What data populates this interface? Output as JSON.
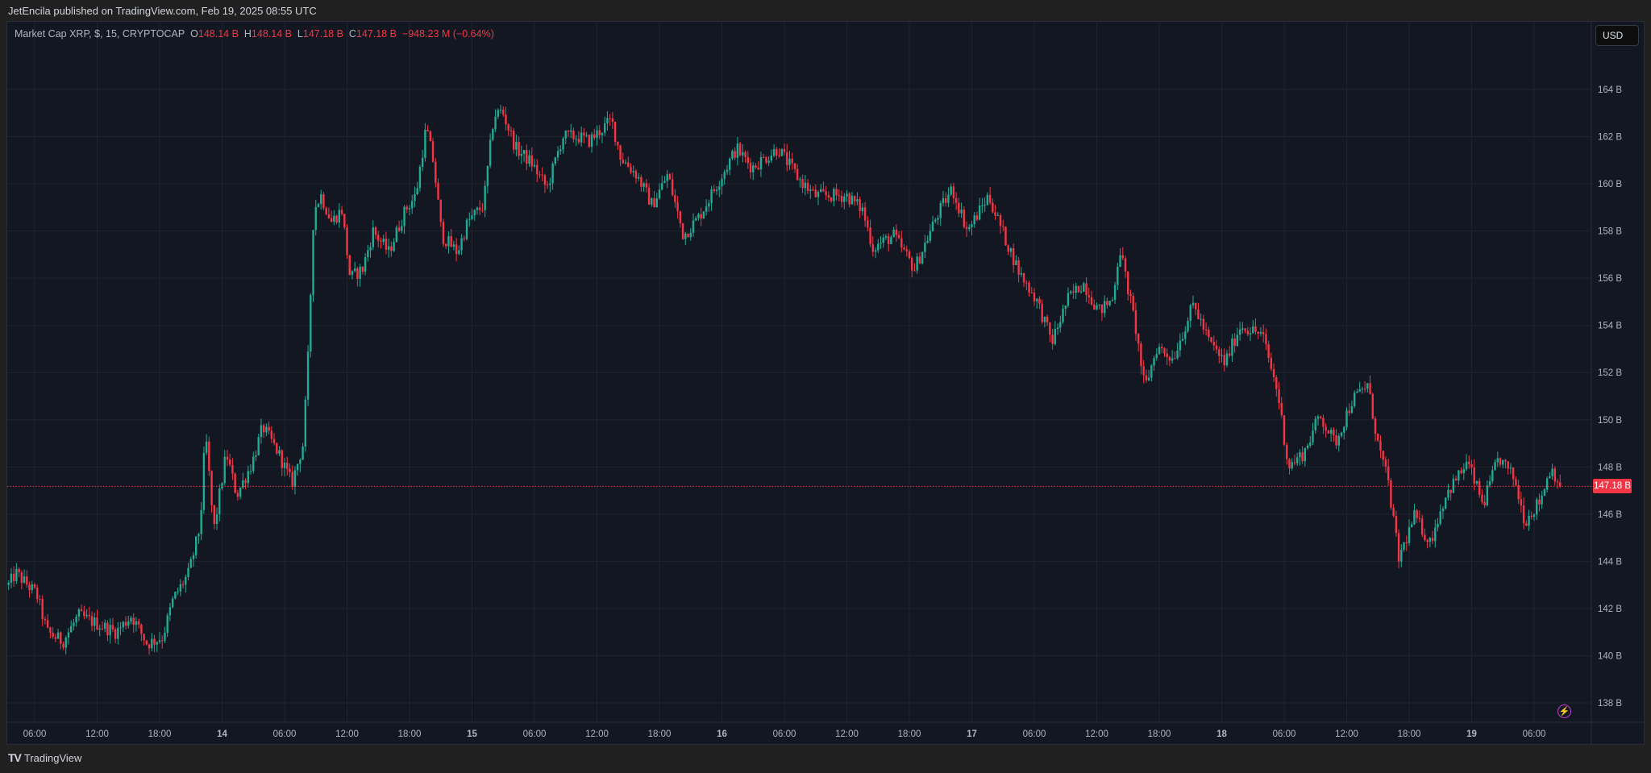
{
  "header": {
    "published": "JetEncila published on TradingView.com, Feb 19, 2025 08:55 UTC"
  },
  "legend": {
    "symbol": "Market Cap XRP, $, 15, CRYPTOCAP",
    "o_label": "O",
    "o": "148.14 B",
    "h_label": "H",
    "h": "148.14 B",
    "l_label": "L",
    "l": "147.18 B",
    "c_label": "C",
    "c": "147.18 B",
    "change": "−948.23 M (−0.64%)"
  },
  "currency_button": "USD",
  "last_price_label": "147.18 B",
  "footer": {
    "logo": "TV",
    "brand": "TradingView"
  },
  "colors": {
    "up": "#22ab94",
    "down": "#f23645",
    "grid": "#1f2330",
    "bg": "#131722"
  },
  "chart_data": {
    "type": "candlestick",
    "interval": "15m",
    "yunit": "B USD",
    "ylim": [
      137.3,
      165.2
    ],
    "yticks": [
      138,
      140,
      142,
      144,
      146,
      148,
      150,
      152,
      154,
      156,
      158,
      160,
      162,
      164
    ],
    "ytick_labels": [
      "138 B",
      "140 B",
      "142 B",
      "144 B",
      "146 B",
      "148 B",
      "150 B",
      "152 B",
      "154 B",
      "156 B",
      "158 B",
      "160 B",
      "162 B",
      "164 B"
    ],
    "xtick_labels": [
      "06:00",
      "12:00",
      "18:00",
      "14",
      "06:00",
      "12:00",
      "18:00",
      "15",
      "06:00",
      "12:00",
      "18:00",
      "16",
      "06:00",
      "12:00",
      "18:00",
      "17",
      "06:00",
      "12:00",
      "18:00",
      "18",
      "06:00",
      "12:00",
      "18:00",
      "19",
      "06:00"
    ],
    "xtick_hours_step": 6,
    "last_price": 147.18,
    "path_hours_since_feb13_0600": [
      -2.5,
      -1.8,
      0.2,
      1.2,
      2.7,
      4.2,
      6.3,
      7.8,
      9.3,
      10.8,
      12.3,
      13.3,
      14.8,
      15.9,
      16.4,
      17.2,
      18.4,
      19.4,
      20.9,
      21.9,
      23.4,
      24.7,
      25.8,
      26.3,
      26.8,
      27.5,
      28.5,
      29.5,
      30.3,
      31.5,
      32.5,
      34,
      35.6,
      36.6,
      37.6,
      38.3,
      39.1,
      40.6,
      41.6,
      43.1,
      44.1,
      44.9,
      46.2,
      47.7,
      49.2,
      50.7,
      52.2,
      53.2,
      55.4,
      56.3,
      57.8,
      59.3,
      60.8,
      62.3,
      63.8,
      65.3,
      67.4,
      68.9,
      71.4,
      73.4,
      74.9,
      76.5,
      78,
      79.5,
      80.5,
      82.5,
      84.5,
      86.6,
      88.1,
      89.6,
      91.6,
      93.1,
      94.6,
      96.2,
      97.7,
      99.2,
      100.7,
      102.2,
      103.5,
      104.2,
      105.7,
      106.6,
      107.8,
      109.3,
      111.3,
      112.8,
      114.3,
      115.8,
      117.9,
      119.4,
      120.4,
      121.9,
      123.4,
      124.9,
      126.5,
      128,
      129,
      130,
      131,
      132.5,
      134,
      135.5,
      137.6,
      139.1,
      140.6,
      142.1,
      143.1,
      144.6,
      145.6,
      146.6
    ],
    "path_price": [
      143.0,
      143.5,
      142.6,
      141,
      140.6,
      141.7,
      141.3,
      141,
      141.7,
      140.5,
      140.8,
      142.4,
      143.5,
      145.5,
      149.5,
      145.3,
      148.6,
      146.8,
      148.2,
      149.7,
      148.6,
      147.3,
      149,
      153,
      158.9,
      159.5,
      158.4,
      158.9,
      156,
      156.4,
      158,
      157.1,
      158.9,
      159.5,
      162.4,
      160.9,
      157.8,
      157.1,
      158.4,
      159.1,
      162.9,
      163.1,
      161.5,
      160.9,
      159.8,
      162,
      162,
      161.8,
      162.7,
      161.1,
      160.4,
      159.1,
      160.4,
      157.8,
      158.6,
      159.8,
      161.5,
      160.7,
      161.5,
      160.2,
      159.5,
      159.5,
      159.5,
      158.9,
      157.3,
      157.8,
      156.4,
      158.6,
      159.8,
      158,
      159.5,
      157.8,
      156.2,
      155.1,
      153.3,
      155.1,
      155.8,
      154.6,
      155.1,
      157.3,
      154,
      151.3,
      153.1,
      152.6,
      154.9,
      153.3,
      152.4,
      154,
      153.6,
      151.1,
      148,
      148.6,
      150.2,
      149,
      150.8,
      151.5,
      149,
      147.3,
      144.1,
      145.9,
      144.8,
      146.8,
      148.2,
      146.4,
      148.4,
      147.5,
      145.7,
      146.6,
      148,
      147.18
    ]
  }
}
